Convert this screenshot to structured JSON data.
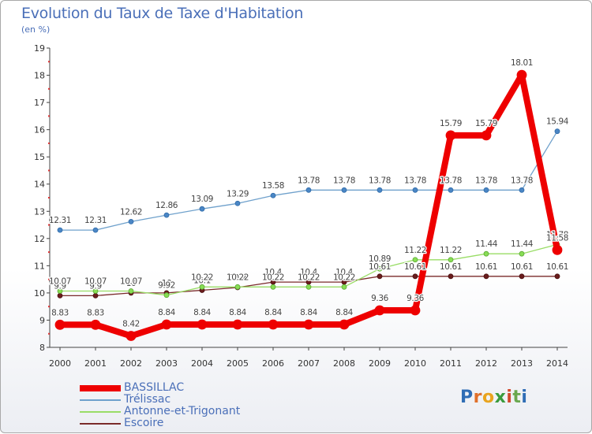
{
  "title": "Evolution du Taux de Taxe d'Habitation",
  "unit_label": "(en %)",
  "logo": {
    "text": "Proxiti",
    "letters": [
      "P",
      "r",
      "o",
      "x",
      "i",
      "t",
      "i"
    ],
    "colors": [
      "#2f6db5",
      "#e0702b",
      "#e9a41f",
      "#3a9b3d",
      "#d24a2e",
      "#6aa84f",
      "#2f6db5"
    ]
  },
  "chart_data": {
    "type": "line",
    "x": [
      "2000",
      "2001",
      "2002",
      "2003",
      "2004",
      "2005",
      "2006",
      "2007",
      "2008",
      "2009",
      "2010",
      "2011",
      "2012",
      "2013",
      "2014"
    ],
    "ylim": [
      8,
      19
    ],
    "yticks": [
      8,
      9,
      10,
      11,
      12,
      13,
      14,
      15,
      16,
      17,
      18,
      19
    ],
    "grid": false,
    "legend_position": "bottom-left",
    "series": [
      {
        "name": "BASSILLAC",
        "color": "#ee0000",
        "values": [
          8.83,
          8.83,
          8.42,
          8.84,
          8.84,
          8.84,
          8.84,
          8.84,
          8.84,
          9.36,
          9.36,
          15.79,
          15.79,
          18.01,
          11.58
        ],
        "labels": [
          "8.83",
          "8.83",
          "8.42",
          "8.84",
          "8.84",
          "8.84",
          "8.84",
          "8.84",
          "8.84",
          "9.36",
          "9.36",
          "15.79",
          "15.79",
          "18.01",
          "11.58"
        ]
      },
      {
        "name": "Trélissac",
        "color": "#6fa1cc",
        "values": [
          12.31,
          12.31,
          12.62,
          12.86,
          13.09,
          13.29,
          13.58,
          13.78,
          13.78,
          13.78,
          13.78,
          13.78,
          13.78,
          13.78,
          15.94
        ],
        "labels": [
          "12.31",
          "12.31",
          "12.62",
          "12.86",
          "13.09",
          "13.29",
          "13.58",
          "13.78",
          "13.78",
          "13.78",
          "13.78",
          "13.78",
          "13.78",
          "13.78",
          "15.94"
        ]
      },
      {
        "name": "Antonne-et-Trigonant",
        "color": "#99dd66",
        "values": [
          10.07,
          10.07,
          10.07,
          9.92,
          10.22,
          10.22,
          10.22,
          10.22,
          10.22,
          10.89,
          11.22,
          11.22,
          11.44,
          11.44,
          11.78
        ],
        "labels": [
          "10.07",
          "10.07",
          "10.07",
          "9.92",
          "10.22",
          "10.22",
          "10.22",
          "10.22",
          "10.22",
          "10.89",
          "11.22",
          "11.22",
          "11.44",
          "11.44",
          "11.78"
        ]
      },
      {
        "name": "Escoire",
        "color": "#7a2a2a",
        "values": [
          9.9,
          9.9,
          10.0,
          10.0,
          10.1,
          10.2,
          10.4,
          10.4,
          10.4,
          10.61,
          10.61,
          10.61,
          10.61,
          10.61,
          10.61
        ],
        "labels": [
          "9.9",
          "9.9",
          "10",
          "10",
          "10.1",
          "10.2",
          "10.4",
          "10.4",
          "10.4",
          "10.61",
          "10.61",
          "10.61",
          "10.61",
          "10.61",
          "10.61"
        ]
      }
    ]
  }
}
